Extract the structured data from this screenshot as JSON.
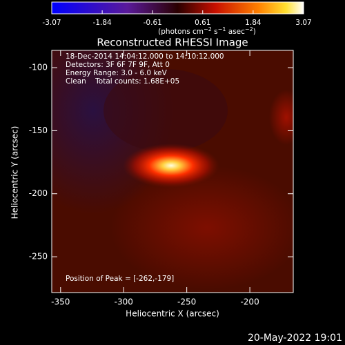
{
  "chart_data": {
    "type": "image",
    "title": "Reconstructed RHESSI Image",
    "colorbar": {
      "label_parts": [
        "(photons cm",
        "−2",
        " s",
        "−1",
        " asec",
        "−2",
        ")"
      ],
      "lim": [
        -3.07,
        3.07
      ],
      "ticks": [
        -3.07,
        -1.84,
        -0.61,
        0.61,
        1.84,
        3.07
      ]
    },
    "xlabel": "Heliocentric X (arcsec)",
    "ylabel": "Heliocentric Y (arcsec)",
    "xlim": [
      -357,
      -165.6
    ],
    "xticks": [
      -350,
      -300,
      -250,
      -200
    ],
    "ylim": [
      -278.4,
      -86.3
    ],
    "yticks": [
      -250,
      -200,
      -150,
      -100
    ],
    "info_lines": [
      "18-Dec-2014 14:04:12.000 to 14:10:12.000",
      "Detectors: 3F 6F 7F 9F, Att 0",
      "Energy Range: 3.0 - 6.0 keV",
      "Clean    Total counts: 1.68E+05"
    ],
    "peak_text": "Position of Peak = [-262,-179]",
    "timestamp": "20-May-2022 19:01"
  }
}
